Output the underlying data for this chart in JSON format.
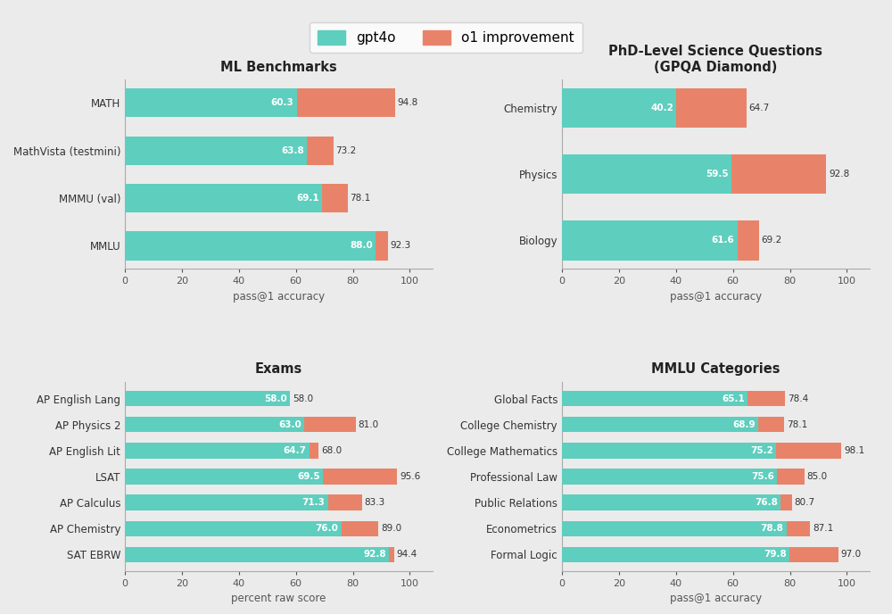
{
  "background_color": "#ebebeb",
  "teal_color": "#5ecebe",
  "orange_color": "#e8836a",
  "legend_labels": [
    "gpt4o",
    "o1 improvement"
  ],
  "panels": [
    {
      "title": "ML Benchmarks",
      "xlabel": "pass@1 accuracy",
      "categories": [
        "MMLU",
        "MMMU (val)",
        "MathVista (testmini)",
        "MATH"
      ],
      "gpt4o": [
        88.0,
        69.1,
        63.8,
        60.3
      ],
      "o1_total": [
        92.3,
        78.1,
        73.2,
        94.8
      ],
      "xlim": [
        0,
        108
      ]
    },
    {
      "title": "PhD-Level Science Questions\n(GPQA Diamond)",
      "xlabel": "pass@1 accuracy",
      "categories": [
        "Biology",
        "Physics",
        "Chemistry"
      ],
      "gpt4o": [
        61.6,
        59.5,
        40.2
      ],
      "o1_total": [
        69.2,
        92.8,
        64.7
      ],
      "xlim": [
        0,
        108
      ]
    },
    {
      "title": "Exams",
      "xlabel": "percent raw score",
      "categories": [
        "SAT EBRW",
        "AP Chemistry",
        "AP Calculus",
        "LSAT",
        "AP English Lit",
        "AP Physics 2",
        "AP English Lang"
      ],
      "gpt4o": [
        92.8,
        76.0,
        71.3,
        69.5,
        64.7,
        63.0,
        58.0
      ],
      "o1_total": [
        94.4,
        89.0,
        83.3,
        95.6,
        68.0,
        81.0,
        58.0
      ],
      "xlim": [
        0,
        108
      ]
    },
    {
      "title": "MMLU Categories",
      "xlabel": "pass@1 accuracy",
      "categories": [
        "Formal Logic",
        "Econometrics",
        "Public Relations",
        "Professional Law",
        "College Mathematics",
        "College Chemistry",
        "Global Facts"
      ],
      "gpt4o": [
        79.8,
        78.8,
        76.8,
        75.6,
        75.2,
        68.9,
        65.1
      ],
      "o1_total": [
        97.0,
        87.1,
        80.7,
        85.0,
        98.1,
        78.1,
        78.4
      ],
      "xlim": [
        0,
        108
      ]
    }
  ]
}
